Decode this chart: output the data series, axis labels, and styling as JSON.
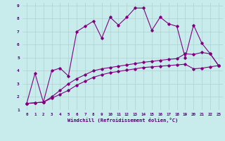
{
  "xlabel": "Windchill (Refroidissement éolien,°C)",
  "background_color": "#c8ecec",
  "line_color": "#800080",
  "grid_color": "#b0d0d0",
  "xlim": [
    -0.5,
    23.5
  ],
  "ylim": [
    1,
    9.2
  ],
  "xticks": [
    0,
    1,
    2,
    3,
    4,
    5,
    6,
    7,
    8,
    9,
    10,
    11,
    12,
    13,
    14,
    15,
    16,
    17,
    18,
    19,
    20,
    21,
    22,
    23
  ],
  "yticks": [
    1,
    2,
    3,
    4,
    5,
    6,
    7,
    8,
    9
  ],
  "line1_x": [
    0,
    1,
    2,
    3,
    4,
    5,
    6,
    7,
    8,
    9,
    10,
    11,
    12,
    13,
    14,
    15,
    16,
    17,
    18,
    19,
    20,
    21,
    22,
    23
  ],
  "line1_y": [
    1.5,
    3.8,
    1.6,
    4.0,
    4.2,
    3.6,
    7.0,
    7.4,
    7.8,
    6.5,
    8.1,
    7.5,
    8.1,
    8.8,
    8.8,
    7.1,
    8.1,
    7.6,
    7.4,
    5.0,
    7.5,
    6.1,
    5.3,
    4.4
  ],
  "line2_x": [
    0,
    1,
    2,
    3,
    4,
    5,
    6,
    7,
    8,
    9,
    10,
    11,
    12,
    13,
    14,
    15,
    16,
    17,
    18,
    19,
    20,
    21,
    22,
    23
  ],
  "line2_y": [
    1.5,
    1.55,
    1.6,
    2.0,
    2.5,
    3.0,
    3.4,
    3.7,
    4.0,
    4.15,
    4.25,
    4.35,
    4.45,
    4.55,
    4.65,
    4.72,
    4.8,
    4.87,
    4.93,
    5.3,
    5.25,
    5.4,
    5.3,
    4.4
  ],
  "line3_x": [
    0,
    1,
    2,
    3,
    4,
    5,
    6,
    7,
    8,
    9,
    10,
    11,
    12,
    13,
    14,
    15,
    16,
    17,
    18,
    19,
    20,
    21,
    22,
    23
  ],
  "line3_y": [
    1.5,
    1.55,
    1.6,
    1.9,
    2.2,
    2.5,
    2.9,
    3.2,
    3.5,
    3.7,
    3.85,
    3.95,
    4.05,
    4.15,
    4.25,
    4.3,
    4.35,
    4.4,
    4.45,
    4.5,
    4.15,
    4.2,
    4.3,
    4.4
  ]
}
